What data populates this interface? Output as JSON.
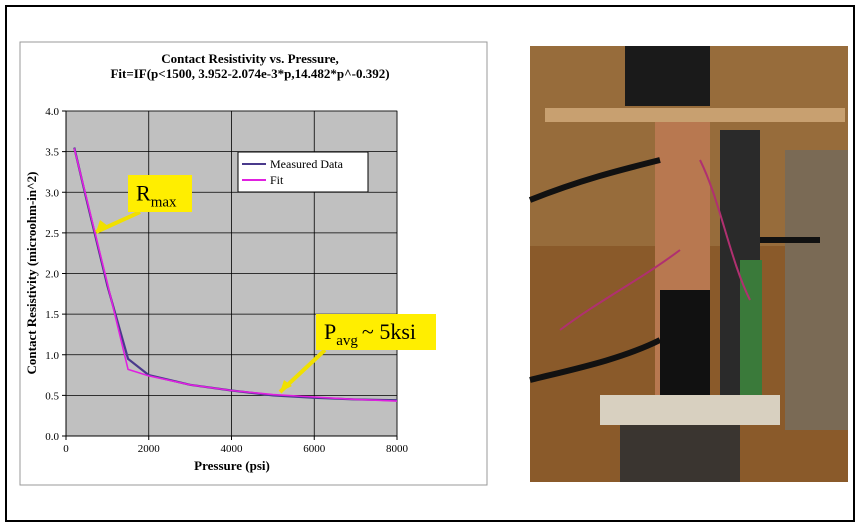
{
  "chart_data": {
    "type": "line",
    "title": "Contact Resistivity vs. Pressure,",
    "subtitle": "Fit=IF(p<1500, 3.952-2.074e-3*p,14.482*p^-0.392)",
    "x_label": "Pressure (psi)",
    "y_label": "Contact Resistivity (microohm-in^2)",
    "x": [
      200,
      500,
      1000,
      1500,
      2000,
      3000,
      4000,
      5000,
      6000,
      7000,
      8000
    ],
    "series": [
      {
        "name": "Measured Data",
        "color": "#4a3a8c",
        "values": [
          3.55,
          2.9,
          1.85,
          0.95,
          0.75,
          0.63,
          0.56,
          0.5,
          0.47,
          0.45,
          0.44
        ]
      },
      {
        "name": "Fit",
        "color": "#e020e0",
        "values": [
          3.54,
          2.92,
          1.88,
          0.82,
          0.74,
          0.63,
          0.56,
          0.51,
          0.48,
          0.45,
          0.43
        ]
      }
    ],
    "xlim": [
      0,
      8000
    ],
    "ylim": [
      0,
      4
    ],
    "xticks": [
      0,
      2000,
      4000,
      6000,
      8000
    ],
    "yticks": [
      {
        "value": 0,
        "label": "0.0"
      },
      {
        "value": 0.5,
        "label": "0.5"
      },
      {
        "value": 1,
        "label": "1.0"
      },
      {
        "value": 1.5,
        "label": "1.5"
      },
      {
        "value": 2,
        "label": "2.0"
      },
      {
        "value": 2.5,
        "label": "2.5"
      },
      {
        "value": 3,
        "label": "3.0"
      },
      {
        "value": 3.5,
        "label": "3.5"
      },
      {
        "value": 4,
        "label": "4.0"
      }
    ],
    "grid": true,
    "legend": "upper right",
    "annotations": [
      {
        "text": "R",
        "subscript": "max"
      },
      {
        "text": "P",
        "subscript": "avg",
        "suffix": "~ 5ksi"
      }
    ]
  }
}
